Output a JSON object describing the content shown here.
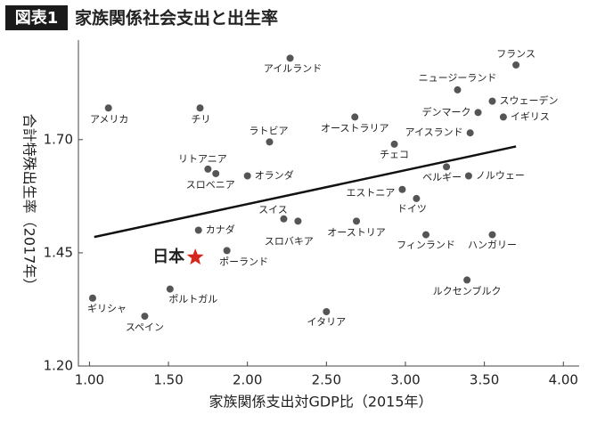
{
  "chart_data": {
    "type": "scatter",
    "badge": "図表1",
    "title": "家族関係社会支出と出生率",
    "xlabel": "家族関係支出対GDP比（2015年）",
    "ylabel": "合計特殊出生率（2017年）",
    "labels": [
      "アイルランド",
      "フランス",
      "ニュージーランド",
      "スウェーデン",
      "デンマーク",
      "イギリス",
      "アメリカ",
      "チリ",
      "オーストラリア",
      "アイスランド",
      "ラトビア",
      "チェコ",
      "リトアニア",
      "スロベニア",
      "オランダ",
      "ベルギー",
      "ノルウェー",
      "エストニア",
      "ドイツ",
      "スイス",
      "スロバキア",
      "オーストリア",
      "カナダ",
      "フィンランド",
      "ハンガリー",
      "ポーランド",
      "ルクセンブルク",
      "ポルトガル",
      "ギリシャ",
      "スペイン",
      "イタリア",
      "日本"
    ],
    "x": [
      2.27,
      3.7,
      3.33,
      3.55,
      3.46,
      3.62,
      1.12,
      1.7,
      2.68,
      3.41,
      2.14,
      2.93,
      1.75,
      1.8,
      2.0,
      3.26,
      3.4,
      2.98,
      3.07,
      2.23,
      2.32,
      2.69,
      1.69,
      3.13,
      3.55,
      1.87,
      3.39,
      1.51,
      1.02,
      1.35,
      2.5,
      1.67
    ],
    "values": [
      1.88,
      1.865,
      1.81,
      1.785,
      1.76,
      1.75,
      1.77,
      1.77,
      1.75,
      1.715,
      1.695,
      1.69,
      1.635,
      1.625,
      1.62,
      1.64,
      1.62,
      1.59,
      1.57,
      1.525,
      1.52,
      1.52,
      1.5,
      1.49,
      1.49,
      1.455,
      1.39,
      1.37,
      1.35,
      1.31,
      1.32,
      1.44
    ],
    "colors": [
      "#555",
      "#555",
      "#555",
      "#555",
      "#555",
      "#555",
      "#555",
      "#555",
      "#555",
      "#555",
      "#555",
      "#555",
      "#555",
      "#555",
      "#555",
      "#555",
      "#555",
      "#555",
      "#555",
      "#555",
      "#555",
      "#555",
      "#555",
      "#555",
      "#555",
      "#555",
      "#555",
      "#555",
      "#555",
      "#555",
      "#555",
      "#d7261e"
    ],
    "markers": [
      "circle",
      "circle",
      "circle",
      "circle",
      "circle",
      "circle",
      "circle",
      "circle",
      "circle",
      "circle",
      "circle",
      "circle",
      "circle",
      "circle",
      "circle",
      "circle",
      "circle",
      "circle",
      "circle",
      "circle",
      "circle",
      "circle",
      "circle",
      "circle",
      "circle",
      "circle",
      "circle",
      "circle",
      "circle",
      "circle",
      "circle",
      "star"
    ],
    "trend": {
      "x": [
        1.03,
        3.7
      ],
      "values": [
        1.485,
        1.685
      ]
    },
    "xlim": [
      0.93,
      4.1
    ],
    "ylim": [
      1.2,
      1.92
    ],
    "xticks": [
      {
        "value": 1.0,
        "label": "1.00"
      },
      {
        "value": 1.5,
        "label": "1.50"
      },
      {
        "value": 2.0,
        "label": "2.00"
      },
      {
        "value": 2.5,
        "label": "2.50"
      },
      {
        "value": 3.0,
        "label": "3.00"
      },
      {
        "value": 3.5,
        "label": "3.50"
      },
      {
        "value": 4.0,
        "label": "4.00"
      }
    ],
    "yticks": [
      {
        "value": 1.2,
        "label": "1.20"
      },
      {
        "value": 1.45,
        "label": "1.45"
      },
      {
        "value": 1.7,
        "label": "1.70"
      }
    ]
  }
}
